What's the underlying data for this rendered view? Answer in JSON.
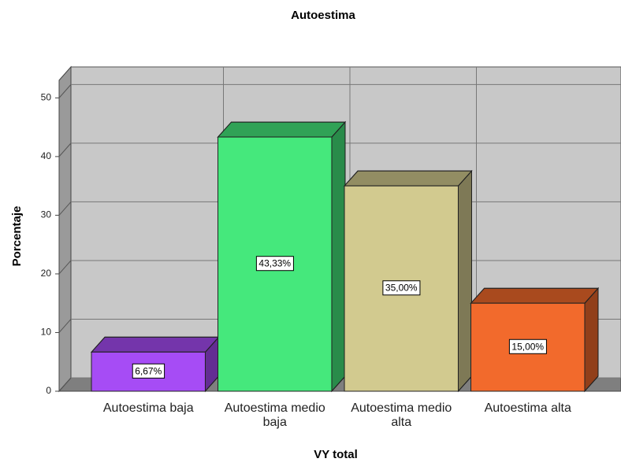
{
  "chart_data": {
    "type": "bar3d",
    "title": "Autoestima",
    "xlabel": "VY total",
    "ylabel": "Porcentaje",
    "categories": [
      "Autoestima baja",
      "Autoestima medio baja",
      "Autoestima medio alta",
      "Autoestima alta"
    ],
    "values": [
      6.67,
      43.33,
      35,
      15
    ],
    "value_labels": [
      "6,67%",
      "43,33%",
      "35,00%",
      "15,00%"
    ],
    "colors": [
      "#a64cf5",
      "#45e87c",
      "#d2ca8f",
      "#f26a2c"
    ],
    "ylim": [
      0,
      53
    ],
    "yticks": [
      0,
      10,
      20,
      30,
      40,
      50
    ],
    "grid": true
  }
}
